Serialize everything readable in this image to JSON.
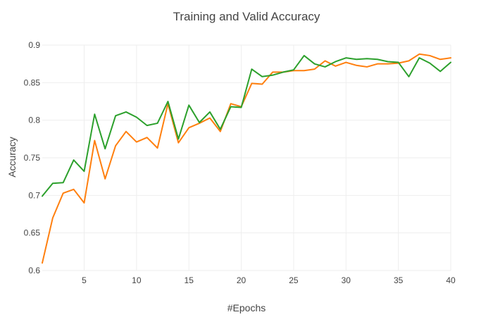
{
  "chart_data": {
    "type": "line",
    "title": "Training and Valid Accuracy",
    "xlabel": "#Epochs",
    "ylabel": "Accuracy",
    "xlim": [
      1,
      40
    ],
    "ylim": [
      0.6,
      0.9
    ],
    "xticks": [
      5,
      10,
      15,
      20,
      25,
      30,
      35,
      40
    ],
    "yticks": [
      0.6,
      0.65,
      0.7,
      0.75,
      0.8,
      0.85,
      0.9
    ],
    "ytick_labels": [
      "0.6",
      "0.65",
      "0.7",
      "0.75",
      "0.8",
      "0.85",
      "0.9"
    ],
    "grid": true,
    "legend": "none",
    "x": [
      1,
      2,
      3,
      4,
      5,
      6,
      7,
      8,
      9,
      10,
      11,
      12,
      13,
      14,
      15,
      16,
      17,
      18,
      19,
      20,
      21,
      22,
      23,
      24,
      25,
      26,
      27,
      28,
      29,
      30,
      31,
      32,
      33,
      34,
      35,
      36,
      37,
      38,
      39,
      40
    ],
    "series": [
      {
        "color": "#ff7f0e",
        "values": [
          0.61,
          0.67,
          0.703,
          0.708,
          0.69,
          0.773,
          0.722,
          0.766,
          0.785,
          0.771,
          0.777,
          0.763,
          0.822,
          0.77,
          0.79,
          0.796,
          0.803,
          0.785,
          0.822,
          0.818,
          0.849,
          0.848,
          0.864,
          0.864,
          0.866,
          0.866,
          0.868,
          0.879,
          0.872,
          0.877,
          0.873,
          0.871,
          0.875,
          0.875,
          0.876,
          0.879,
          0.888,
          0.886,
          0.881,
          0.883
        ]
      },
      {
        "color": "#2ca02c",
        "values": [
          0.699,
          0.716,
          0.717,
          0.747,
          0.732,
          0.808,
          0.762,
          0.806,
          0.811,
          0.804,
          0.793,
          0.796,
          0.825,
          0.775,
          0.82,
          0.797,
          0.811,
          0.788,
          0.818,
          0.817,
          0.868,
          0.858,
          0.86,
          0.864,
          0.867,
          0.886,
          0.875,
          0.871,
          0.878,
          0.883,
          0.881,
          0.882,
          0.881,
          0.878,
          0.877,
          0.858,
          0.883,
          0.876,
          0.865,
          0.877
        ]
      }
    ]
  }
}
